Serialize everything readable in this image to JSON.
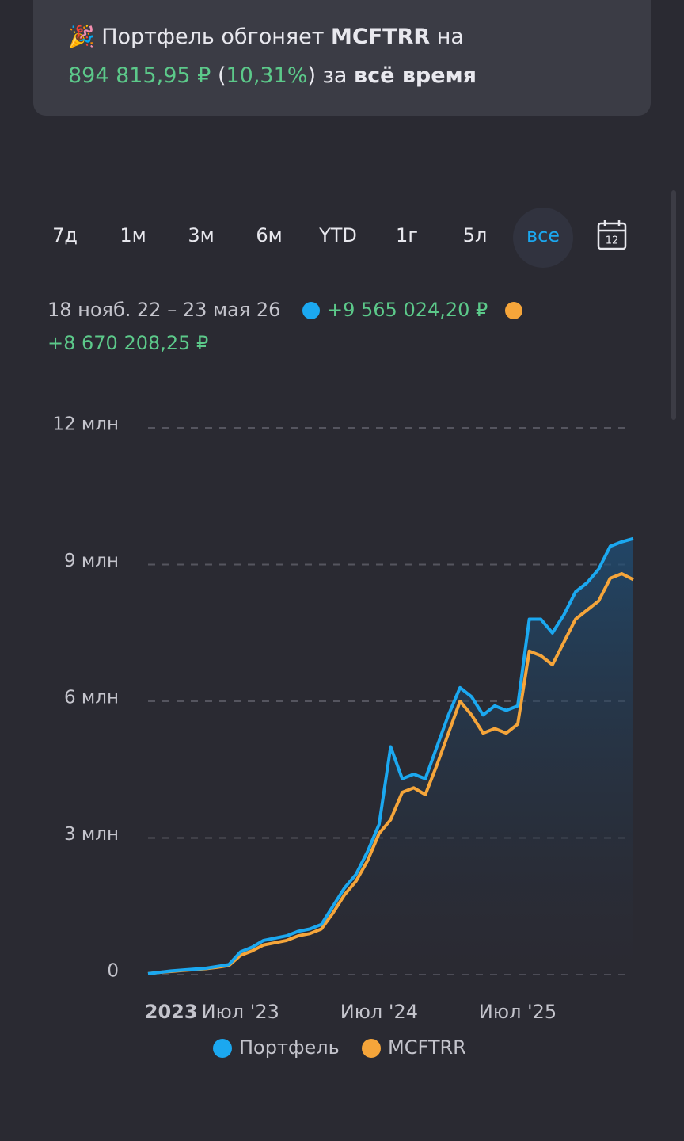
{
  "banner": {
    "lines": [
      [
        {
          "text": "🎉 ",
          "style": "plain"
        },
        {
          "text": "Портфель обгоняет ",
          "style": "plain"
        },
        {
          "text": "MCFTRR",
          "style": "bold"
        },
        {
          "text": " на",
          "style": "plain"
        }
      ],
      [
        {
          "text": "894 815,95 ₽",
          "style": "green"
        },
        {
          "text": " (",
          "style": "plain"
        },
        {
          "text": "10,31%",
          "style": "green"
        },
        {
          "text": ") за ",
          "style": "plain"
        },
        {
          "text": "всё время",
          "style": "bold"
        }
      ]
    ]
  },
  "periods": [
    "7д",
    "1м",
    "3м",
    "6м",
    "YTD",
    "1г",
    "5л",
    "все"
  ],
  "active_period": 7,
  "calendar_day": "12",
  "range": {
    "dates": "18 нояб. 22 – 23 мая 26",
    "portfolio_change": "+9 565 024,20 ₽",
    "benchmark_change": "+8 670 208,25 ₽"
  },
  "chart_data": {
    "type": "line",
    "categories": [
      null,
      null,
      "2023",
      null,
      null,
      null,
      null,
      null,
      "Июл '23",
      null,
      null,
      null,
      null,
      null,
      null,
      null,
      null,
      null,
      null,
      null,
      "Июл '24",
      null,
      null,
      null,
      null,
      null,
      null,
      null,
      null,
      null,
      null,
      null,
      "Июл '25",
      null,
      null,
      null,
      null,
      null,
      null,
      null,
      null,
      null,
      null
    ],
    "series": [
      {
        "name": "Портфель",
        "color": "#1ba8f0",
        "values": [
          20000,
          50000,
          80000,
          100000,
          120000,
          140000,
          180000,
          220000,
          500000,
          600000,
          750000,
          800000,
          850000,
          950000,
          1000000,
          1100000,
          1500000,
          1900000,
          2200000,
          2700000,
          3300000,
          5000000,
          4300000,
          4400000,
          4300000,
          5000000,
          5700000,
          6300000,
          6100000,
          5700000,
          5900000,
          5800000,
          5900000,
          7800000,
          7800000,
          7500000,
          7900000,
          8400000,
          8600000,
          8900000,
          9400000,
          9500000,
          9570000
        ]
      },
      {
        "name": "MCFTRR",
        "color": "#f5a53a",
        "values": [
          20000,
          50000,
          70000,
          90000,
          110000,
          130000,
          160000,
          200000,
          420000,
          520000,
          650000,
          700000,
          750000,
          850000,
          900000,
          1000000,
          1350000,
          1750000,
          2050000,
          2500000,
          3100000,
          3400000,
          4000000,
          4100000,
          3950000,
          4600000,
          5300000,
          6000000,
          5700000,
          5300000,
          5400000,
          5300000,
          5500000,
          7100000,
          7000000,
          6800000,
          7300000,
          7800000,
          8000000,
          8200000,
          8700000,
          8800000,
          8670000
        ]
      }
    ],
    "ylim": [
      0,
      12000000
    ],
    "yticks": [
      0,
      {
        "value": 3000000,
        "label": "3 млн"
      },
      {
        "value": 6000000,
        "label": "6 млн"
      },
      {
        "value": 9000000,
        "label": "9 млн"
      },
      {
        "value": 12000000,
        "label": "12 млн"
      }
    ],
    "grid": true,
    "area_under_first": true
  }
}
